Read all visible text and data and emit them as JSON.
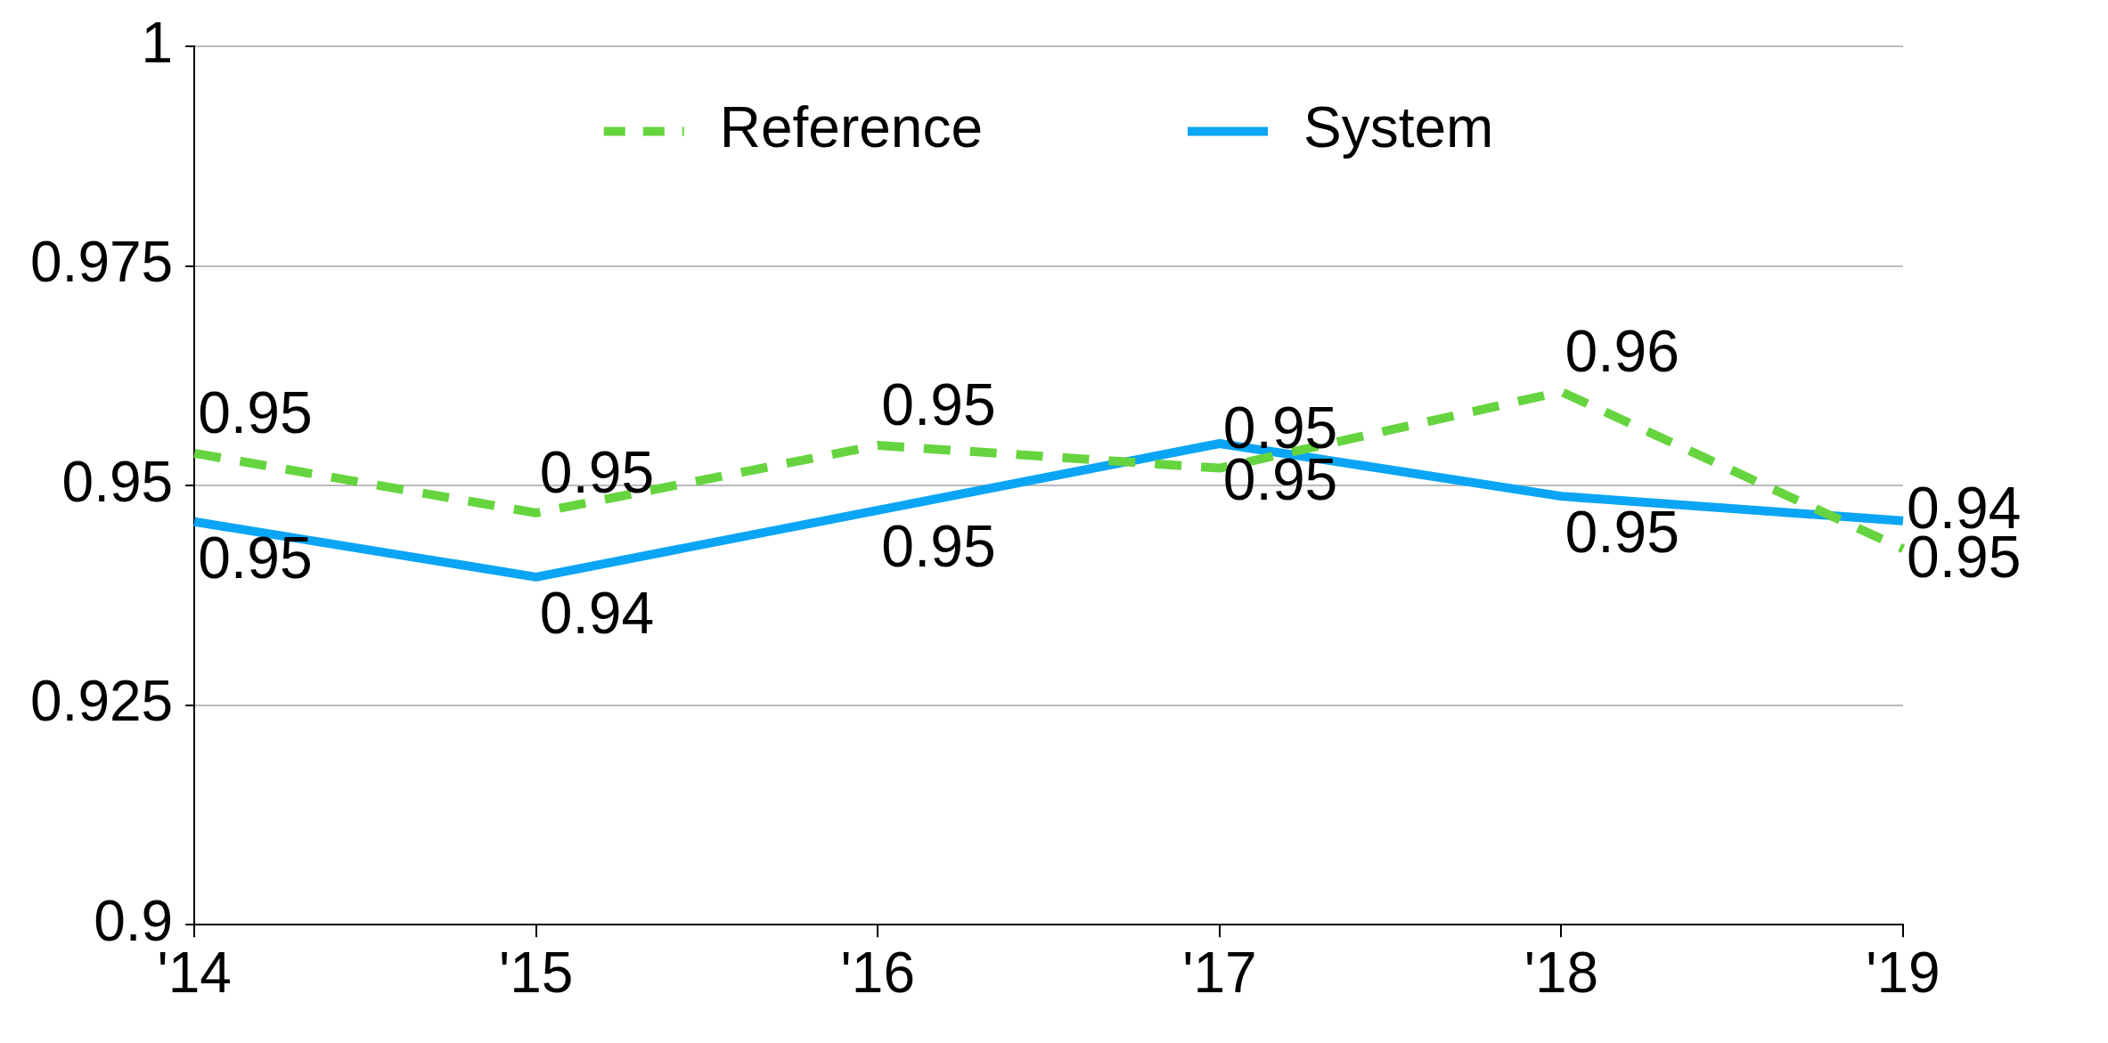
{
  "chart_data": {
    "type": "line",
    "categories": [
      "'14",
      "'15",
      "'16",
      "'17",
      "'18",
      "'19"
    ],
    "series": [
      {
        "name": "Reference",
        "color": "#66d43f",
        "line_style": "dashed",
        "values": [
          0.9537,
          0.9469,
          0.9546,
          0.952,
          0.9607,
          0.9428
        ],
        "value_labels": [
          "0.95",
          "0.95",
          "0.95",
          "0.95",
          "0.96",
          "0.94"
        ]
      },
      {
        "name": "System",
        "color": "#0aa5f5",
        "line_style": "solid",
        "values": [
          0.9459,
          0.9396,
          0.9472,
          0.9548,
          0.9488,
          0.946
        ],
        "value_labels": [
          "0.95",
          "0.94",
          "0.95",
          "0.95",
          "0.95",
          "0.95"
        ]
      }
    ],
    "ylim": [
      0.9,
      1
    ],
    "yticks": [
      0.9,
      0.925,
      0.95,
      0.975,
      1
    ],
    "grid": "y",
    "legend": "top",
    "marker": "none"
  }
}
